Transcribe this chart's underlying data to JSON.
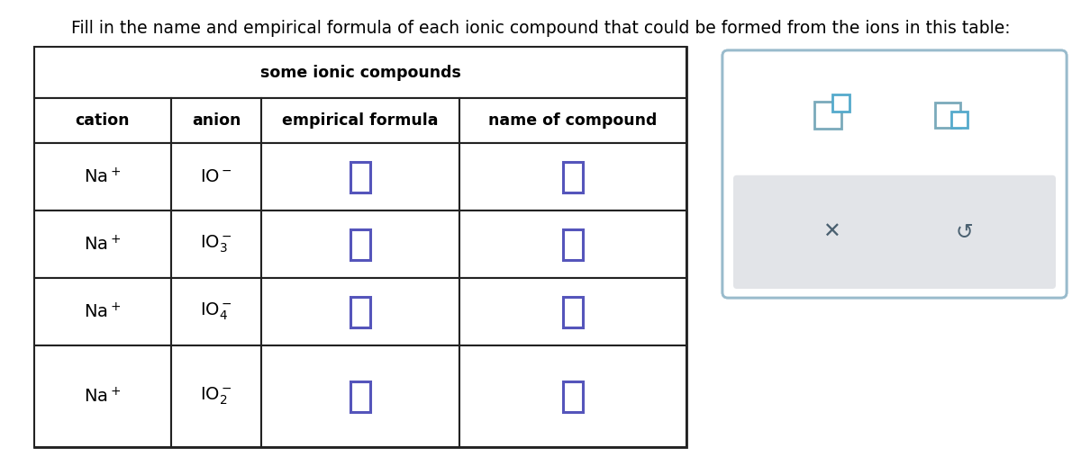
{
  "title_text": "Fill in the name and empirical formula of each ionic compound that could be formed from the ions in this table:",
  "table_title": "some ionic compounds",
  "col_headers": [
    "cation",
    "anion",
    "empirical formula",
    "name of compound"
  ],
  "cations": [
    "Na$^+$",
    "Na$^+$",
    "Na$^+$",
    "Na$^+$"
  ],
  "anions": [
    "IO$^-$",
    "IO$_3^-$",
    "IO$_4^-$",
    "IO$_2^-$"
  ],
  "bg_color": "#ffffff",
  "table_border_color": "#222222",
  "cell_text_color": "#000000",
  "input_box_color": "#5555bb",
  "title_color": "#000000",
  "widget_border_color": "#99bbcc",
  "widget_bg": "#ffffff",
  "widget_btn_bg": "#e2e4e8",
  "widget_icon_color": "#4a6070",
  "icon_color_back": "#7aaabb",
  "icon_color_front": "#55aacc"
}
